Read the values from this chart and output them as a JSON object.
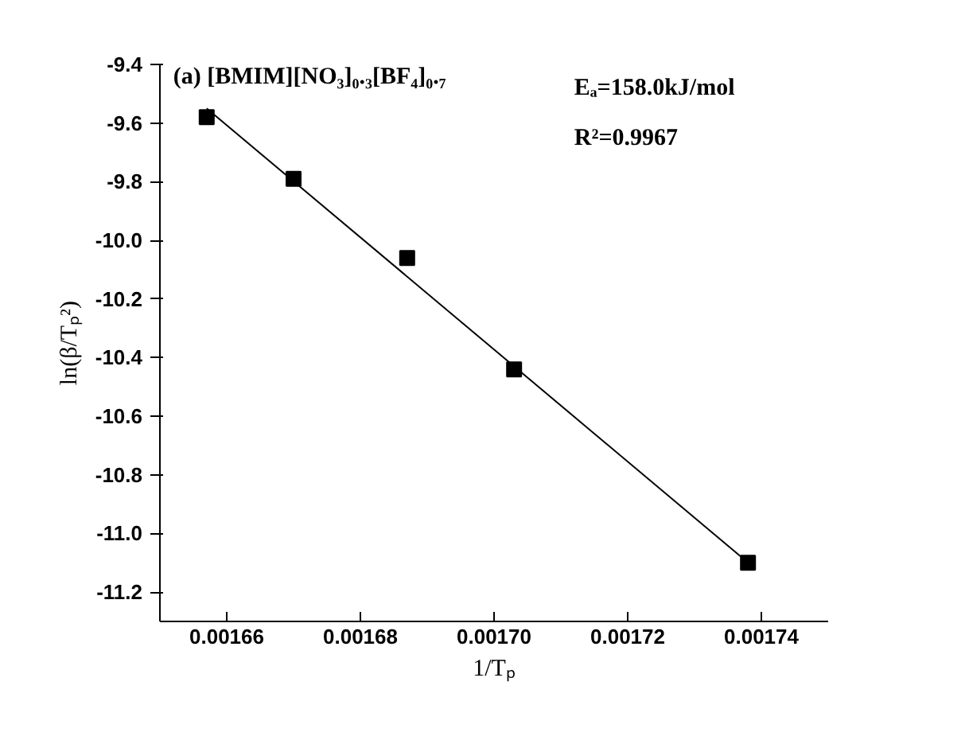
{
  "chart_data": {
    "type": "scatter",
    "title": "(a) [BMIM][NO₃]₀.₃[BF₄]₀.₇",
    "xlabel": "1/Tₚ",
    "ylabel": "ln(β/Tₚ²)",
    "annotations": [
      "Eₐ=158.0kJ/mol",
      "R²=0.9967"
    ],
    "grid": false,
    "series": [
      {
        "color": "#000000",
        "marker": "square",
        "x": [
          0.001657,
          0.00167,
          0.001687,
          0.001703,
          0.001738
        ],
        "values": [
          -9.58,
          -9.79,
          -10.06,
          -10.44,
          -11.1
        ]
      },
      {
        "type": "line",
        "color": "#000000",
        "marker": "none",
        "x": [
          0.001657,
          0.001737
        ],
        "values": [
          -9.55,
          -11.08
        ]
      }
    ],
    "xlim": [
      0.00165,
      0.00175
    ],
    "xticks": [
      0.00166,
      0.00168,
      {
        "value": 0.0017,
        "label": "0.00170"
      },
      0.00172,
      0.00174
    ],
    "ylim": [
      -11.3,
      -9.4
    ],
    "yticks": [
      -11.2,
      {
        "value": -11.0,
        "label": "-11.0"
      },
      -10.8,
      -10.6,
      -10.4,
      -10.2,
      {
        "value": -10.0,
        "label": "-10.0"
      },
      -9.8,
      -9.6,
      -9.4
    ]
  }
}
